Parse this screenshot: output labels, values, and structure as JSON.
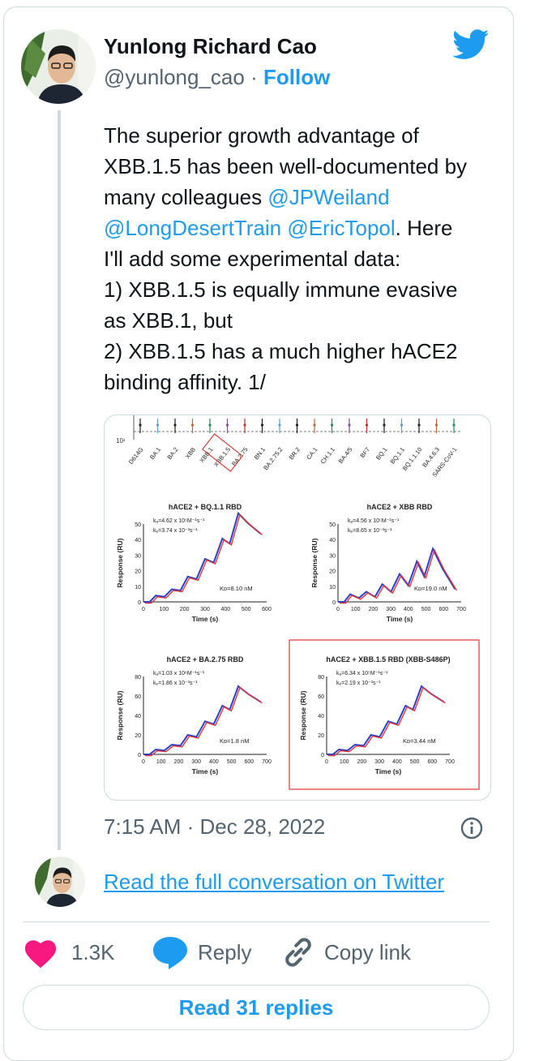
{
  "author": {
    "name": "Yunlong Richard Cao",
    "handle": "@yunlong_cao",
    "separator": "·",
    "follow_label": "Follow"
  },
  "tweet": {
    "line1": "The superior growth advantage of",
    "line2": "XBB.1.5 has been well-documented by",
    "line3_pre": "many colleagues ",
    "mention1": "@JPWeiland",
    "mention2": "@LongDesertTrain",
    "mention3": "@EricTopol",
    "line4_post": ". Here",
    "line5": "I'll add some experimental data:",
    "line6": "1)  XBB.1.5 is equally immune evasive",
    "line7": "as XBB.1, but",
    "line8": "2) XBB.1.5 has a much higher hACE2",
    "line9": "binding affinity. 1/"
  },
  "figure": {
    "ytick_label": "10¹",
    "variants": [
      "D614G",
      "BA.1",
      "BA.2",
      "XBB",
      "XBB.1",
      "XBB.1.5",
      "BA.2.75",
      "BN.1",
      "BA.2.75.2",
      "BR.2",
      "CA.1",
      "CH.1.1",
      "BA.4/5",
      "BF7",
      "BQ.1",
      "BQ.1.1",
      "BQ.1.1.10",
      "BA.4.6.3",
      "SARS-CoV-1"
    ],
    "ylabel": "Response (RU)",
    "xlabel": "Time (s)",
    "panels": [
      {
        "title": "hACE2 + BQ.1.1 RBD",
        "ka": "kₐ=4.62 x 10⁵M⁻¹s⁻¹",
        "kd": "kₑ=3.74 x 10⁻³s⁻¹",
        "KD": "Kᴅ=8.10 nM",
        "yticks": [
          "0",
          "10",
          "20",
          "30",
          "40",
          "50"
        ],
        "xticks": [
          "0",
          "100",
          "200",
          "300",
          "400",
          "500",
          "600"
        ]
      },
      {
        "title": "hACE2 + XBB RBD",
        "ka": "kₐ=4.56 x 10⁵M⁻¹s⁻¹",
        "kd": "kₑ=8.65 x 10⁻³s⁻¹",
        "KD": "Kᴅ=19.0 nM",
        "yticks": [
          "0",
          "10",
          "20",
          "30",
          "40",
          "50"
        ],
        "xticks": [
          "0",
          "100",
          "200",
          "300",
          "400",
          "500",
          "600",
          "700"
        ]
      },
      {
        "title": "hACE2 + BA.2.75 RBD",
        "ka": "kₐ=1.03 x 10⁶M⁻¹s⁻¹",
        "kd": "kₑ=1.86 x 10⁻³s⁻¹",
        "KD": "Kᴅ=1.8 nM",
        "yticks": [
          "0",
          "20",
          "40",
          "60",
          "80"
        ],
        "xticks": [
          "0",
          "100",
          "200",
          "300",
          "400",
          "500",
          "600",
          "700"
        ]
      },
      {
        "title": "hACE2 + XBB.1.5 RBD (XBB-S486P)",
        "ka": "kₐ=6.34 x 10⁵M⁻¹s⁻¹",
        "kd": "kₑ=2.19 x 10⁻³s⁻¹",
        "KD": "Kᴅ=3.44 nM",
        "yticks": [
          "0",
          "20",
          "40",
          "60",
          "80"
        ],
        "xticks": [
          "0",
          "100",
          "200",
          "300",
          "400",
          "500",
          "600",
          "700"
        ]
      }
    ]
  },
  "timestamp": "7:15 AM · Dec 28, 2022",
  "read_conversation": "Read the full conversation on Twitter",
  "actions": {
    "like_count": "1.3K",
    "reply_label": "Reply",
    "copy_label": "Copy link"
  },
  "read_replies": "Read 31 replies",
  "colors": {
    "accent": "#1d9bf0",
    "like": "#f91880",
    "text": "#0f1419",
    "muted": "#536471",
    "border": "#cfd9de"
  }
}
